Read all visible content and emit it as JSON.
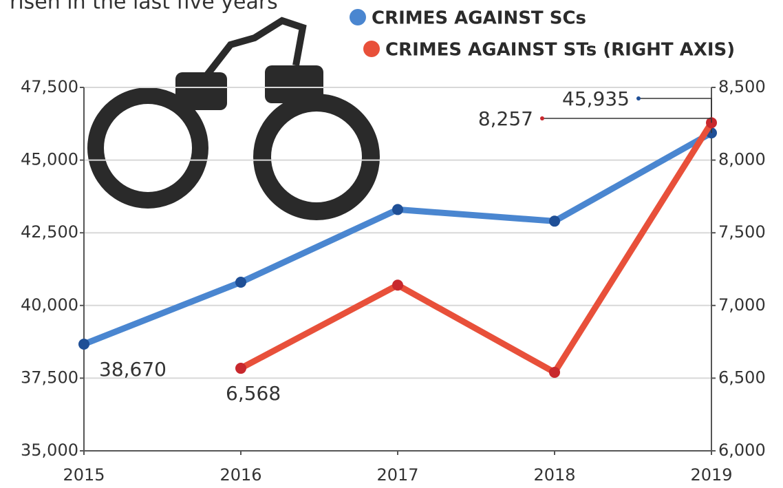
{
  "chart_data": {
    "type": "line",
    "title": "risen in the last five years",
    "categories": [
      "2015",
      "2016",
      "2017",
      "2018",
      "2019"
    ],
    "series": [
      {
        "name": "CRIMES AGAINST SCs",
        "color": "#4a86d0",
        "values": [
          38670,
          40800,
          43300,
          42900,
          45935
        ],
        "value_labels": [
          "38,670",
          null,
          null,
          null,
          "45,935"
        ]
      },
      {
        "name": "CRIMES AGAINST STs (RIGHT AXIS)",
        "color": "#e8503a",
        "axis": "y2",
        "values": [
          null,
          6568,
          7140,
          6540,
          8257
        ],
        "value_labels": [
          null,
          "6,568",
          null,
          null,
          "8,257"
        ]
      }
    ],
    "ylim": [
      35000,
      47500
    ],
    "yticks": [
      {
        "value": 35000,
        "label": "35,000"
      },
      {
        "value": 37500,
        "label": "37,500"
      },
      {
        "value": 40000,
        "label": "40,000"
      },
      {
        "value": 42500,
        "label": "42,500"
      },
      {
        "value": 45000,
        "label": "45,000"
      },
      {
        "value": 47500,
        "label": "47,500"
      }
    ],
    "y2lim": [
      6000,
      8500
    ],
    "y2ticks": [
      {
        "value": 6000,
        "label": "6,000"
      },
      {
        "value": 6500,
        "label": "6,500"
      },
      {
        "value": 7000,
        "label": "7,000"
      },
      {
        "value": 7500,
        "label": "7,500"
      },
      {
        "value": 8000,
        "label": "8,000"
      },
      {
        "value": 8500,
        "label": "8,500"
      }
    ],
    "grid": true
  }
}
